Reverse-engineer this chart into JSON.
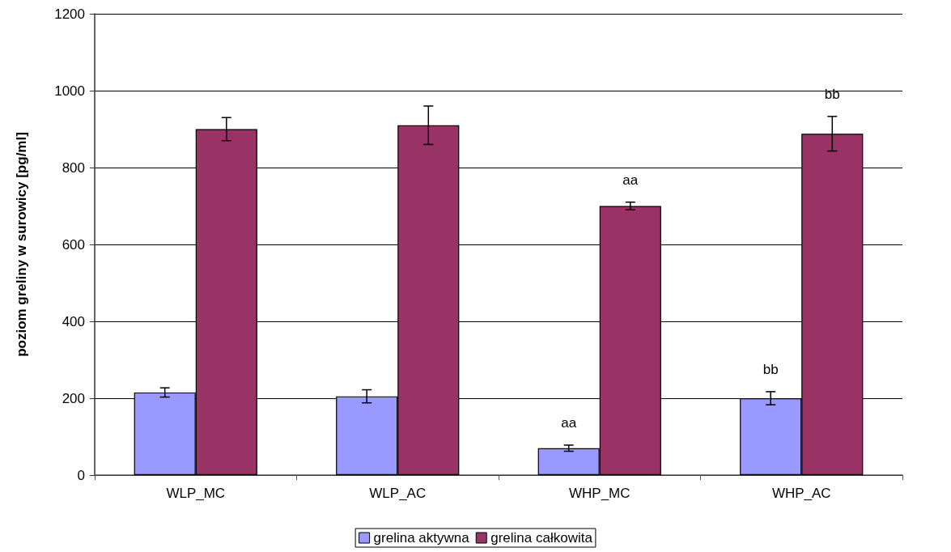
{
  "chart_data": {
    "type": "bar",
    "ylabel": "poziom greliny w surowicy [pg/ml]",
    "categories": [
      "WLP_MC",
      "WLP_AC",
      "WHP_MC",
      "WHP_AC"
    ],
    "series": [
      {
        "name": "grelina aktywna",
        "color": "#9999ff",
        "values": [
          215,
          205,
          70,
          200
        ],
        "errors": [
          12,
          17,
          8,
          17
        ]
      },
      {
        "name": "grelina całkowita",
        "color": "#993366",
        "values": [
          900,
          910,
          700,
          888
        ],
        "errors": [
          30,
          50,
          10,
          45
        ]
      }
    ],
    "ylim": [
      0,
      1200
    ],
    "yticks": [
      0,
      200,
      400,
      600,
      800,
      1000,
      1200
    ],
    "grid": "y",
    "legend": "bottom",
    "annotations": [
      {
        "text": "aa",
        "x": "WHP_MC",
        "y": 70
      },
      {
        "text": "aa",
        "x": "WHP_MC",
        "y": 700
      },
      {
        "text": "bb",
        "x": "WHP_AC",
        "y": 200
      },
      {
        "text": "bb",
        "x": "WHP_AC",
        "y": 888
      }
    ]
  }
}
